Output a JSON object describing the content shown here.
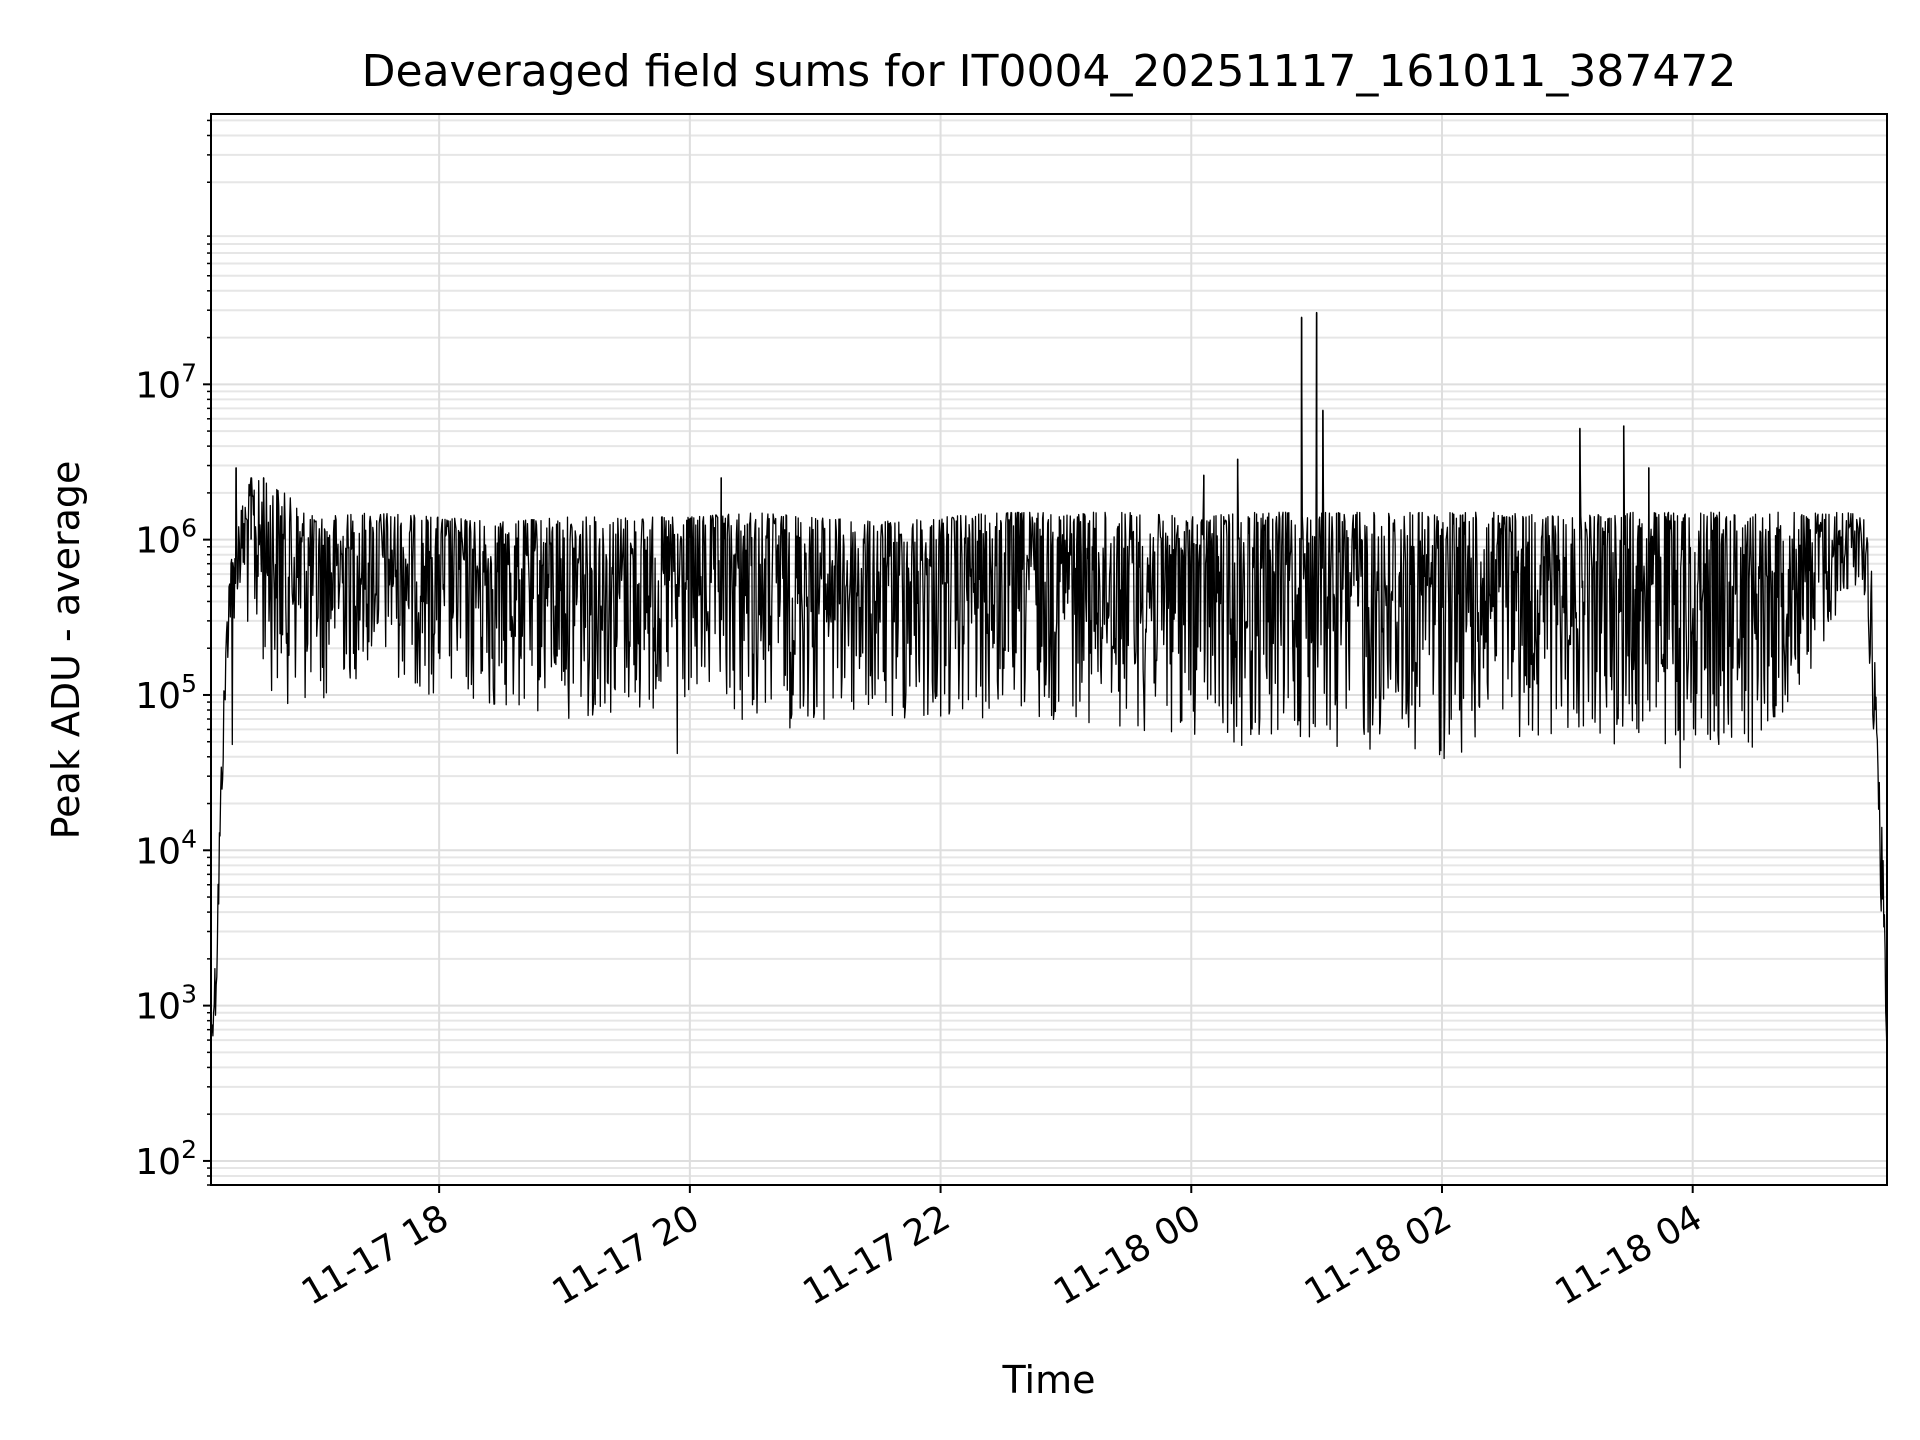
{
  "chart_data": {
    "type": "line",
    "title": "Deaveraged field sums for IT0004_20251117_161011_387472",
    "xlabel": "Time",
    "ylabel": "Peak ADU - average",
    "yscale": "log",
    "ylim": [
      70,
      550000000
    ],
    "xlim_hours": [
      16.18,
      29.55
    ],
    "grid": true,
    "line_color": "#000000",
    "x_ticks": [
      {
        "hour": 18,
        "label": "11-17 18"
      },
      {
        "hour": 20,
        "label": "11-17 20"
      },
      {
        "hour": 22,
        "label": "11-17 22"
      },
      {
        "hour": 24,
        "label": "11-18 00"
      },
      {
        "hour": 26,
        "label": "11-18 02"
      },
      {
        "hour": 28,
        "label": "11-18 04"
      }
    ],
    "y_ticks": [
      {
        "value": 100,
        "base": "10",
        "exp": "2"
      },
      {
        "value": 1000,
        "base": "10",
        "exp": "3"
      },
      {
        "value": 10000,
        "base": "10",
        "exp": "4"
      },
      {
        "value": 100000,
        "base": "10",
        "exp": "5"
      },
      {
        "value": 1000000,
        "base": "10",
        "exp": "6"
      },
      {
        "value": 10000000,
        "base": "10",
        "exp": "7"
      }
    ],
    "series": [
      {
        "name": "Peak ADU - average",
        "x_start_hour": 16.18,
        "x_end_hour": 29.55,
        "envelope": [
          {
            "hour": 16.18,
            "low": 600,
            "high": 600
          },
          {
            "hour": 16.22,
            "low": 700,
            "high": 2500
          },
          {
            "hour": 16.27,
            "low": 20000,
            "high": 60000
          },
          {
            "hour": 16.32,
            "low": 200000,
            "high": 600000
          },
          {
            "hour": 16.4,
            "low": 400000,
            "high": 1400000
          },
          {
            "hour": 16.5,
            "low": 200000,
            "high": 2500000
          },
          {
            "hour": 16.7,
            "low": 90000,
            "high": 2200000
          },
          {
            "hour": 17.0,
            "low": 80000,
            "high": 1400000
          },
          {
            "hour": 17.5,
            "low": 150000,
            "high": 1500000
          },
          {
            "hour": 18.0,
            "low": 90000,
            "high": 1400000
          },
          {
            "hour": 18.5,
            "low": 70000,
            "high": 1300000
          },
          {
            "hour": 19.0,
            "low": 70000,
            "high": 1400000
          },
          {
            "hour": 19.5,
            "low": 70000,
            "high": 1400000
          },
          {
            "hour": 20.0,
            "low": 70000,
            "high": 1400000
          },
          {
            "hour": 20.5,
            "low": 60000,
            "high": 1500000
          },
          {
            "hour": 21.0,
            "low": 60000,
            "high": 1400000
          },
          {
            "hour": 21.5,
            "low": 60000,
            "high": 1300000
          },
          {
            "hour": 22.0,
            "low": 60000,
            "high": 1400000
          },
          {
            "hour": 22.5,
            "low": 60000,
            "high": 1500000
          },
          {
            "hour": 23.0,
            "low": 70000,
            "high": 1500000
          },
          {
            "hour": 23.5,
            "low": 60000,
            "high": 1500000
          },
          {
            "hour": 24.0,
            "low": 50000,
            "high": 1400000
          },
          {
            "hour": 24.5,
            "low": 45000,
            "high": 1500000
          },
          {
            "hour": 25.0,
            "low": 45000,
            "high": 1500000
          },
          {
            "hour": 25.5,
            "low": 38000,
            "high": 1500000
          },
          {
            "hour": 26.0,
            "low": 38000,
            "high": 1500000
          },
          {
            "hour": 26.5,
            "low": 45000,
            "high": 1500000
          },
          {
            "hour": 27.0,
            "low": 60000,
            "high": 1400000
          },
          {
            "hour": 27.5,
            "low": 45000,
            "high": 1500000
          },
          {
            "hour": 28.0,
            "low": 45000,
            "high": 1500000
          },
          {
            "hour": 28.5,
            "low": 45000,
            "high": 1500000
          },
          {
            "hour": 29.0,
            "low": 150000,
            "high": 1500000
          },
          {
            "hour": 29.35,
            "low": 600000,
            "high": 1500000
          },
          {
            "hour": 29.42,
            "low": 100000,
            "high": 900000
          },
          {
            "hour": 29.48,
            "low": 20000,
            "high": 40000
          },
          {
            "hour": 29.52,
            "low": 900,
            "high": 10000
          },
          {
            "hour": 29.55,
            "low": 500,
            "high": 500
          }
        ],
        "spikes": [
          {
            "hour": 16.38,
            "value": 2900000
          },
          {
            "hour": 16.5,
            "value": 2500000
          },
          {
            "hour": 16.6,
            "value": 2500000
          },
          {
            "hour": 16.35,
            "value": 48000
          },
          {
            "hour": 20.25,
            "value": 2500000
          },
          {
            "hour": 19.9,
            "value": 42000
          },
          {
            "hour": 24.1,
            "value": 2600000
          },
          {
            "hour": 24.37,
            "value": 3300000
          },
          {
            "hour": 24.88,
            "value": 27000000
          },
          {
            "hour": 25.0,
            "value": 29000000
          },
          {
            "hour": 25.05,
            "value": 6800000
          },
          {
            "hour": 27.1,
            "value": 5200000
          },
          {
            "hour": 27.45,
            "value": 5400000
          },
          {
            "hour": 27.65,
            "value": 2900000
          },
          {
            "hour": 27.9,
            "value": 34000
          }
        ]
      }
    ]
  }
}
